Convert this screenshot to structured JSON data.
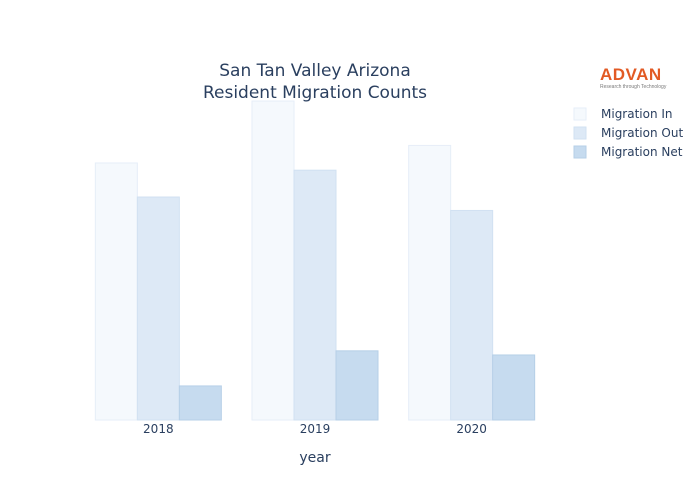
{
  "colors": {
    "brand": "#e25a24",
    "text": "#2a3f5f",
    "series": [
      "#f5f9fd",
      "#dde9f6",
      "#c6dbef"
    ],
    "series_stroke": [
      "#e6eef8",
      "#d1e1f2",
      "#b6cfe7"
    ]
  },
  "logo": {
    "text": "ADVAN",
    "tagline": "Research through Technology",
    "color": "#e25a24"
  },
  "chart_data": {
    "type": "bar",
    "title": "San Tan Valley Arizona\nResident Migration Counts",
    "xlabel": "year",
    "ylabel": "",
    "categories": [
      "2018",
      "2019",
      "2020"
    ],
    "series": [
      {
        "name": "Migration In",
        "values": [
          2490,
          3090,
          2660
        ]
      },
      {
        "name": "Migration Out",
        "values": [
          2160,
          2420,
          2030
        ]
      },
      {
        "name": "Migration Net",
        "values": [
          330,
          670,
          630
        ]
      }
    ],
    "ylim": [
      0,
      3100
    ],
    "grid": false,
    "yaxis_visible": false,
    "legend_position": "top-right"
  }
}
